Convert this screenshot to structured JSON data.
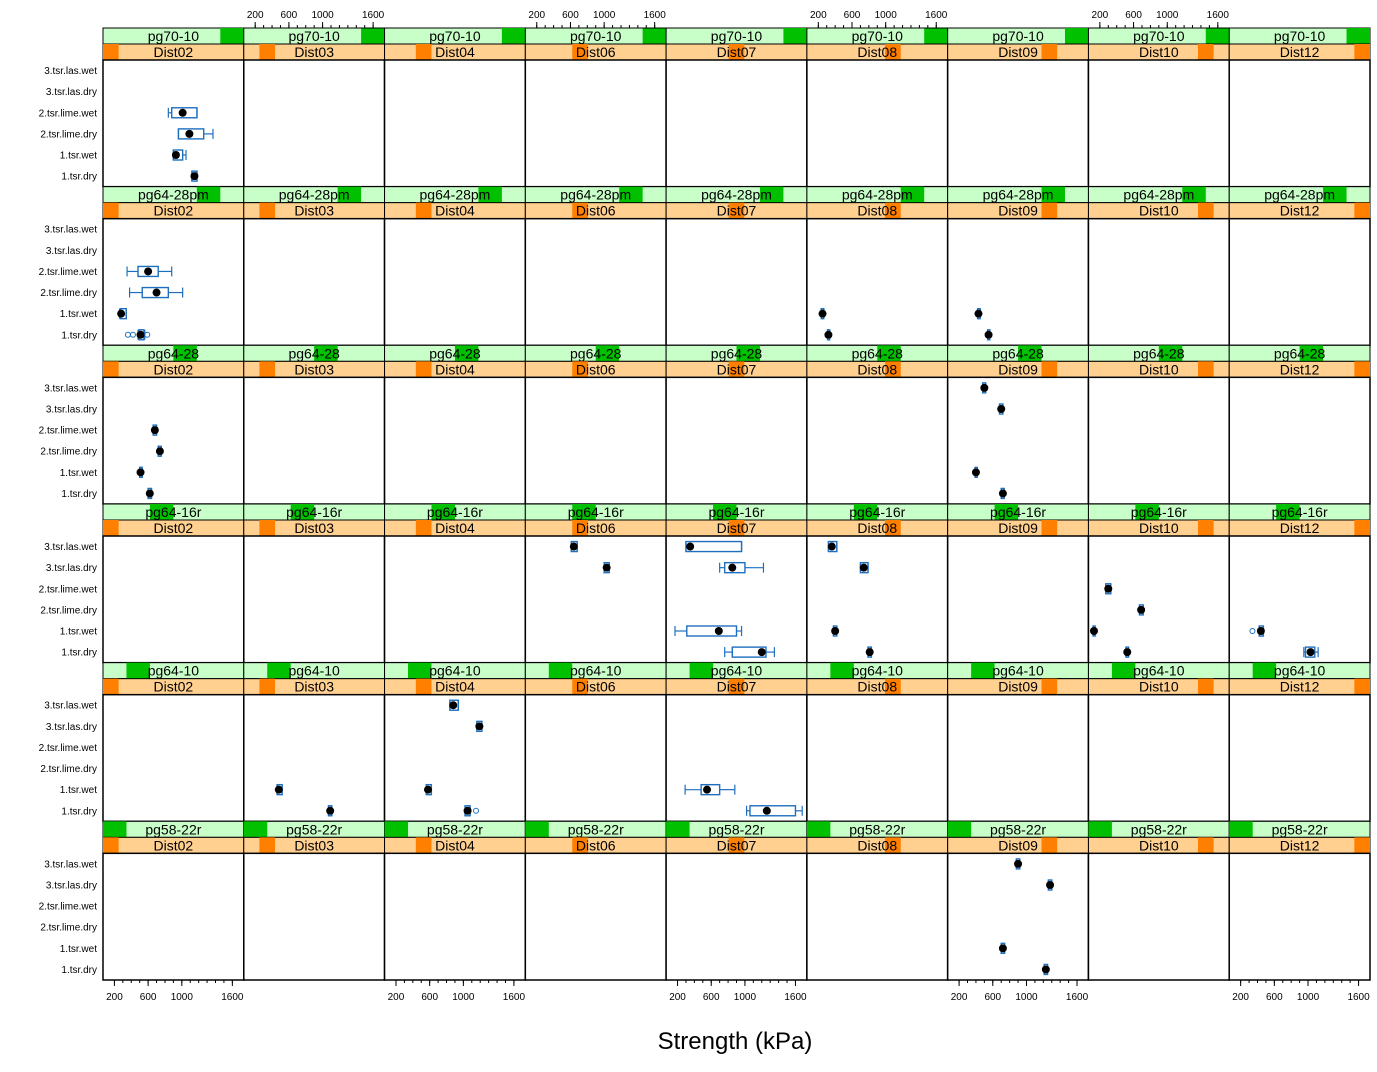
{
  "chart_data": {
    "type": "box",
    "xlabel": "Strength (kPa)",
    "ylabel": "",
    "xlim": [
      100,
      1700
    ],
    "x_ticks": [
      200,
      600,
      1000,
      1600
    ],
    "categories": [
      "1.tsr.dry",
      "1.tsr.wet",
      "2.tsr.lime.dry",
      "2.tsr.lime.wet",
      "3.tsr.las.dry",
      "3.tsr.las.wet"
    ],
    "columns": [
      "Dist02",
      "Dist03",
      "Dist04",
      "Dist06",
      "Dist07",
      "Dist08",
      "Dist09",
      "Dist10",
      "Dist12"
    ],
    "rows": [
      "pg70-10",
      "pg64-28pm",
      "pg64-28",
      "pg64-16r",
      "pg64-10",
      "pg58-22r"
    ],
    "colors": {
      "strip_top": "#c8ffc8",
      "strip_top_marker": "#00c000",
      "strip_bottom": "#ffd090",
      "strip_bottom_marker": "#ff7f00",
      "box": "#1f6fbf",
      "median": "#000000"
    },
    "boxes": [
      {
        "row": "pg70-10",
        "col": "Dist02",
        "cat": "2.tsr.lime.wet",
        "min": 840,
        "q1": 880,
        "median": 1010,
        "q3": 1180,
        "max": 1180
      },
      {
        "row": "pg70-10",
        "col": "Dist02",
        "cat": "2.tsr.lime.dry",
        "min": 960,
        "q1": 960,
        "median": 1090,
        "q3": 1260,
        "max": 1370
      },
      {
        "row": "pg70-10",
        "col": "Dist02",
        "cat": "1.tsr.wet",
        "min": 900,
        "q1": 900,
        "median": 930,
        "q3": 1010,
        "max": 1050
      },
      {
        "row": "pg70-10",
        "col": "Dist02",
        "cat": "1.tsr.dry",
        "min": 1120,
        "q1": 1120,
        "median": 1150,
        "q3": 1180,
        "max": 1180
      },
      {
        "row": "pg64-28pm",
        "col": "Dist02",
        "cat": "2.tsr.lime.wet",
        "min": 350,
        "q1": 480,
        "median": 600,
        "q3": 720,
        "max": 880
      },
      {
        "row": "pg64-28pm",
        "col": "Dist02",
        "cat": "2.tsr.lime.dry",
        "min": 380,
        "q1": 530,
        "median": 700,
        "q3": 840,
        "max": 1010
      },
      {
        "row": "pg64-28pm",
        "col": "Dist02",
        "cat": "1.tsr.wet",
        "min": 260,
        "q1": 270,
        "median": 280,
        "q3": 340,
        "max": 340
      },
      {
        "row": "pg64-28pm",
        "col": "Dist02",
        "cat": "1.tsr.dry",
        "min": 480,
        "q1": 490,
        "median": 510,
        "q3": 550,
        "max": 560,
        "outliers": [
          360,
          420,
          590
        ]
      },
      {
        "row": "pg64-28pm",
        "col": "Dist08",
        "cat": "1.tsr.wet",
        "min": 235,
        "q1": 235,
        "median": 250,
        "q3": 265,
        "max": 265
      },
      {
        "row": "pg64-28pm",
        "col": "Dist08",
        "cat": "1.tsr.dry",
        "min": 310,
        "q1": 310,
        "median": 320,
        "q3": 335,
        "max": 335
      },
      {
        "row": "pg64-28pm",
        "col": "Dist09",
        "cat": "1.tsr.wet",
        "min": 420,
        "q1": 420,
        "median": 430,
        "q3": 450,
        "max": 450
      },
      {
        "row": "pg64-28pm",
        "col": "Dist09",
        "cat": "1.tsr.dry",
        "min": 540,
        "q1": 540,
        "median": 550,
        "q3": 565,
        "max": 565
      },
      {
        "row": "pg64-28",
        "col": "Dist02",
        "cat": "2.tsr.lime.wet",
        "min": 660,
        "q1": 660,
        "median": 680,
        "q3": 700,
        "max": 700
      },
      {
        "row": "pg64-28",
        "col": "Dist02",
        "cat": "2.tsr.lime.dry",
        "min": 720,
        "q1": 720,
        "median": 740,
        "q3": 755,
        "max": 755
      },
      {
        "row": "pg64-28",
        "col": "Dist02",
        "cat": "1.tsr.wet",
        "min": 500,
        "q1": 500,
        "median": 510,
        "q3": 530,
        "max": 530
      },
      {
        "row": "pg64-28",
        "col": "Dist02",
        "cat": "1.tsr.dry",
        "min": 600,
        "q1": 600,
        "median": 620,
        "q3": 640,
        "max": 640
      },
      {
        "row": "pg64-28",
        "col": "Dist09",
        "cat": "3.tsr.las.wet",
        "min": 480,
        "q1": 480,
        "median": 500,
        "q3": 515,
        "max": 515
      },
      {
        "row": "pg64-28",
        "col": "Dist09",
        "cat": "3.tsr.las.dry",
        "min": 680,
        "q1": 680,
        "median": 700,
        "q3": 720,
        "max": 720
      },
      {
        "row": "pg64-28",
        "col": "Dist09",
        "cat": "1.tsr.wet",
        "min": 390,
        "q1": 390,
        "median": 400,
        "q3": 415,
        "max": 415
      },
      {
        "row": "pg64-28",
        "col": "Dist09",
        "cat": "1.tsr.dry",
        "min": 700,
        "q1": 700,
        "median": 720,
        "q3": 735,
        "max": 735
      },
      {
        "row": "pg64-16r",
        "col": "Dist06",
        "cat": "3.tsr.las.wet",
        "min": 610,
        "q1": 610,
        "median": 640,
        "q3": 680,
        "max": 680
      },
      {
        "row": "pg64-16r",
        "col": "Dist06",
        "cat": "3.tsr.las.dry",
        "min": 1000,
        "q1": 1000,
        "median": 1030,
        "q3": 1060,
        "max": 1060
      },
      {
        "row": "pg64-16r",
        "col": "Dist07",
        "cat": "3.tsr.las.wet",
        "min": 300,
        "q1": 300,
        "median": 350,
        "q3": 960,
        "max": 960
      },
      {
        "row": "pg64-16r",
        "col": "Dist07",
        "cat": "3.tsr.las.dry",
        "min": 700,
        "q1": 760,
        "median": 850,
        "q3": 1000,
        "max": 1220
      },
      {
        "row": "pg64-16r",
        "col": "Dist07",
        "cat": "1.tsr.wet",
        "min": 170,
        "q1": 310,
        "median": 690,
        "q3": 900,
        "max": 960
      },
      {
        "row": "pg64-16r",
        "col": "Dist07",
        "cat": "1.tsr.dry",
        "min": 760,
        "q1": 850,
        "median": 1200,
        "q3": 1250,
        "max": 1350
      },
      {
        "row": "pg64-16r",
        "col": "Dist08",
        "cat": "3.tsr.las.wet",
        "min": 320,
        "q1": 320,
        "median": 360,
        "q3": 420,
        "max": 420
      },
      {
        "row": "pg64-16r",
        "col": "Dist08",
        "cat": "3.tsr.las.dry",
        "min": 700,
        "q1": 700,
        "median": 740,
        "q3": 790,
        "max": 790
      },
      {
        "row": "pg64-16r",
        "col": "Dist08",
        "cat": "1.tsr.wet",
        "min": 380,
        "q1": 380,
        "median": 400,
        "q3": 420,
        "max": 420
      },
      {
        "row": "pg64-16r",
        "col": "Dist08",
        "cat": "1.tsr.dry",
        "min": 790,
        "q1": 790,
        "median": 810,
        "q3": 830,
        "max": 830
      },
      {
        "row": "pg64-16r",
        "col": "Dist10",
        "cat": "2.tsr.lime.wet",
        "min": 270,
        "q1": 270,
        "median": 300,
        "q3": 330,
        "max": 330
      },
      {
        "row": "pg64-16r",
        "col": "Dist10",
        "cat": "2.tsr.lime.dry",
        "min": 670,
        "q1": 670,
        "median": 690,
        "q3": 715,
        "max": 715
      },
      {
        "row": "pg64-16r",
        "col": "Dist10",
        "cat": "1.tsr.wet",
        "min": 120,
        "q1": 120,
        "median": 130,
        "q3": 140,
        "max": 140
      },
      {
        "row": "pg64-16r",
        "col": "Dist10",
        "cat": "1.tsr.dry",
        "min": 510,
        "q1": 510,
        "median": 525,
        "q3": 540,
        "max": 540
      },
      {
        "row": "pg64-16r",
        "col": "Dist12",
        "cat": "1.tsr.wet",
        "min": 420,
        "q1": 420,
        "median": 440,
        "q3": 470,
        "max": 470,
        "outliers": [
          340
        ]
      },
      {
        "row": "pg64-16r",
        "col": "Dist12",
        "cat": "1.tsr.dry",
        "min": 950,
        "q1": 970,
        "median": 1030,
        "q3": 1080,
        "max": 1120
      },
      {
        "row": "pg64-10",
        "col": "Dist04",
        "cat": "3.tsr.las.wet",
        "min": 840,
        "q1": 840,
        "median": 880,
        "q3": 940,
        "max": 940
      },
      {
        "row": "pg64-10",
        "col": "Dist04",
        "cat": "3.tsr.las.dry",
        "min": 1160,
        "q1": 1160,
        "median": 1190,
        "q3": 1220,
        "max": 1220
      },
      {
        "row": "pg64-10",
        "col": "Dist04",
        "cat": "1.tsr.wet",
        "min": 560,
        "q1": 560,
        "median": 580,
        "q3": 620,
        "max": 620
      },
      {
        "row": "pg64-10",
        "col": "Dist04",
        "cat": "1.tsr.dry",
        "min": 1020,
        "q1": 1020,
        "median": 1050,
        "q3": 1080,
        "max": 1080,
        "outliers": [
          1150
        ]
      },
      {
        "row": "pg64-10",
        "col": "Dist07",
        "cat": "1.tsr.wet",
        "min": 290,
        "q1": 480,
        "median": 550,
        "q3": 700,
        "max": 880
      },
      {
        "row": "pg64-10",
        "col": "Dist07",
        "cat": "1.tsr.dry",
        "min": 1020,
        "q1": 1060,
        "median": 1260,
        "q3": 1600,
        "max": 1680
      },
      {
        "row": "pg64-10",
        "col": "Dist03",
        "cat": "1.tsr.wet",
        "min": 460,
        "q1": 460,
        "median": 480,
        "q3": 520,
        "max": 520
      },
      {
        "row": "pg64-10",
        "col": "Dist03",
        "cat": "1.tsr.dry",
        "min": 1070,
        "q1": 1070,
        "median": 1090,
        "q3": 1110,
        "max": 1110
      },
      {
        "row": "pg58-22r",
        "col": "Dist09",
        "cat": "3.tsr.las.wet",
        "min": 880,
        "q1": 880,
        "median": 900,
        "q3": 920,
        "max": 920
      },
      {
        "row": "pg58-22r",
        "col": "Dist09",
        "cat": "3.tsr.las.dry",
        "min": 1260,
        "q1": 1260,
        "median": 1280,
        "q3": 1300,
        "max": 1300
      },
      {
        "row": "pg58-22r",
        "col": "Dist09",
        "cat": "1.tsr.wet",
        "min": 700,
        "q1": 700,
        "median": 720,
        "q3": 740,
        "max": 740
      },
      {
        "row": "pg58-22r",
        "col": "Dist09",
        "cat": "1.tsr.dry",
        "min": 1210,
        "q1": 1210,
        "median": 1230,
        "q3": 1250,
        "max": 1250
      }
    ]
  }
}
